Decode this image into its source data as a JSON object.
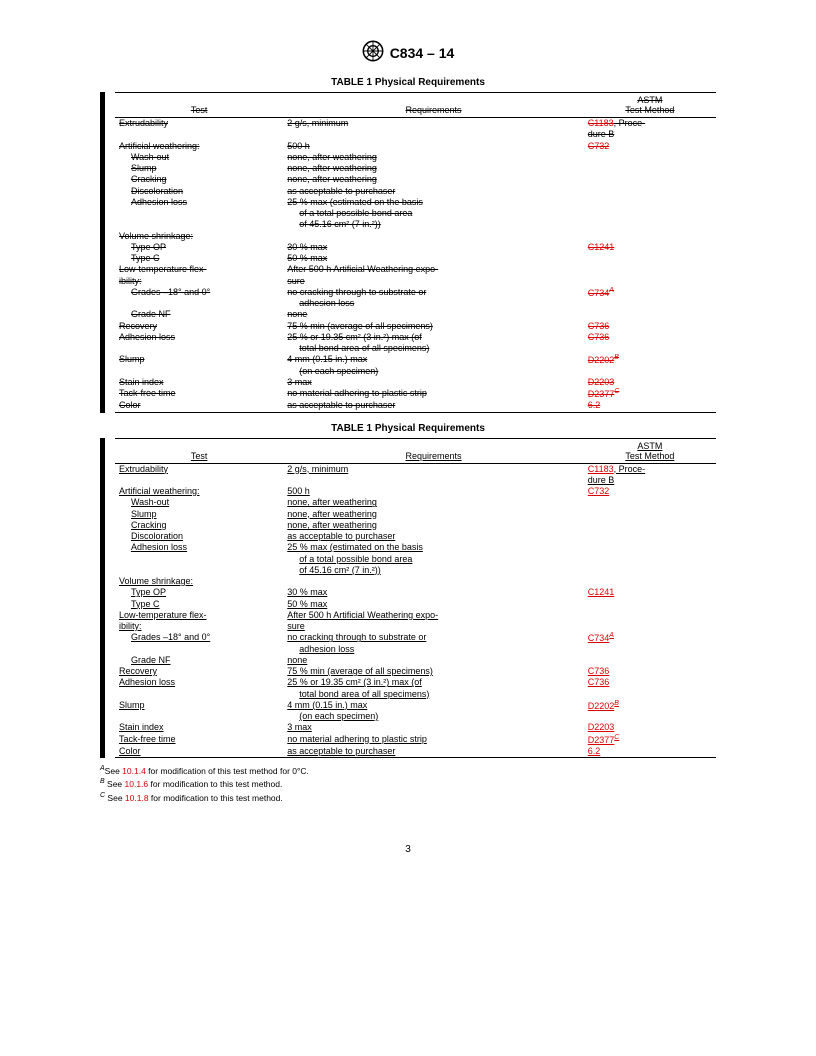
{
  "header": {
    "designation": "C834 – 14"
  },
  "tableTitle": "TABLE 1 Physical Requirements",
  "columns": {
    "test": "Test",
    "req": "Requirements",
    "method": "ASTM\nTest Method"
  },
  "rows": [
    {
      "test": "Extrudability",
      "req": "2 g/s, minimum",
      "method": "C1183",
      "methodAfter": ", Proce-\ndure B"
    },
    {
      "test": "Artificial weathering:",
      "req": "500 h",
      "method": "C732"
    },
    {
      "test": "Wash-out",
      "indent": 1,
      "req": "none, after weathering"
    },
    {
      "test": "Slump",
      "indent": 1,
      "req": "none, after weathering"
    },
    {
      "test": "Cracking",
      "indent": 1,
      "req": "none, after weathering"
    },
    {
      "test": "Discoloration",
      "indent": 1,
      "req": "as acceptable to purchaser"
    },
    {
      "test": "Adhesion loss",
      "indent": 1,
      "req": "25 % max (estimated on the basis\nof a total possible bond area\nof 45.16 cm² (7 in.²))",
      "reqIndent": true
    },
    {
      "test": "Volume shrinkage:",
      "req": ""
    },
    {
      "test": "Type OP",
      "indent": 1,
      "req": "30 % max",
      "method": "C1241"
    },
    {
      "test": "Type C",
      "indent": 1,
      "req": "50 % max"
    },
    {
      "test": "Low-temperature    flex-\nibility:",
      "req": "After 500 h Artificial Weathering    expo-\nsure"
    },
    {
      "test": "Grades –18° and 0°",
      "indent": 1,
      "req": "no cracking through to substrate or\nadhesion loss",
      "reqIndent": true,
      "method": "C734",
      "methodSup": "A"
    },
    {
      "test": "Grade NF",
      "indent": 1,
      "req": "none"
    },
    {
      "test": "Recovery",
      "req": "75 % min (average of all specimens)",
      "method": "C736"
    },
    {
      "test": "Adhesion loss",
      "req": "25 % or 19.35 cm² (3 in.²) max (of\ntotal bond area of all specimens)",
      "reqIndent": true,
      "method": "C736"
    },
    {
      "test": "Slump",
      "req": "4 mm (0.15 in.) max\n(on each specimen)",
      "reqIndent": true,
      "method": "D2202",
      "methodSup": "B"
    },
    {
      "test": "Stain index",
      "req": "3 max",
      "method": "D2203"
    },
    {
      "test": "Tack-free time",
      "req": "no material adhering to plastic strip",
      "method": "D2377",
      "methodSup": "C"
    },
    {
      "test": "Color",
      "req": "as acceptable to purchaser",
      "method": "6.2"
    }
  ],
  "footnotes": [
    {
      "sup": "A",
      "textBefore": "See ",
      "ref": "10.1.4",
      "textAfter": " for modification of this test method for 0°C."
    },
    {
      "sup": "B",
      "textBefore": " See ",
      "ref": "10.1.6",
      "textAfter": " for modification to this test method."
    },
    {
      "sup": "C",
      "textBefore": " See ",
      "ref": "10.1.8",
      "textAfter": " for modification to this test method."
    }
  ],
  "pageNumber": "3"
}
